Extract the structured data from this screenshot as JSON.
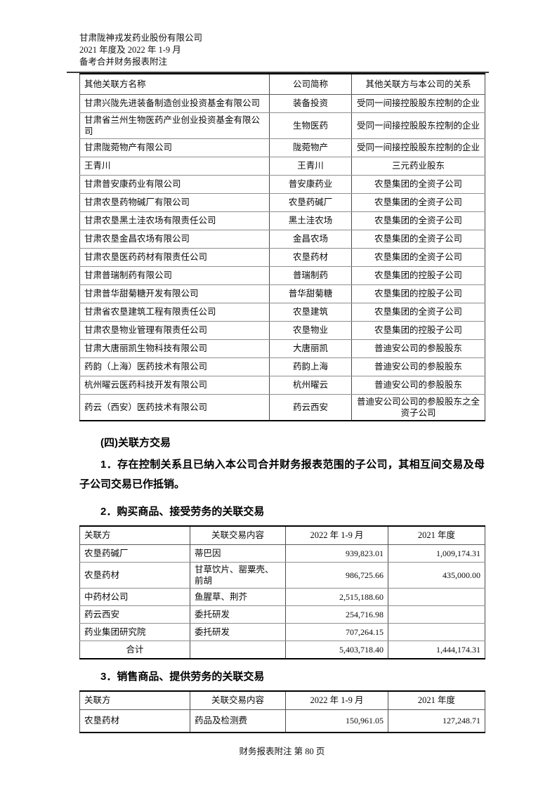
{
  "page": {
    "header_lines": [
      "甘肃陇神戎发药业股份有限公司",
      "2021 年度及 2022 年 1-9 月",
      "备考合并财务报表附注"
    ],
    "footer": "财务报表附注 第 80 页"
  },
  "colors": {
    "text": "#000000",
    "table_border": "#000000"
  },
  "related_parties_table": {
    "headers": [
      "其他关联方名称",
      "公司简称",
      "其他关联方与本公司的关系"
    ],
    "rows": [
      [
        "甘肃兴陇先进装备制造创业投资基金有限公司",
        "装备投资",
        "受同一间接控股股东控制的企业"
      ],
      [
        "甘肃省兰州生物医药产业创业投资基金有限公司",
        "生物医药",
        "受同一间接控股股东控制的企业"
      ],
      [
        "甘肃陇菀物产有限公司",
        "陇菀物产",
        "受同一间接控股股东控制的企业"
      ],
      [
        "王青川",
        "王青川",
        "三元药业股东"
      ],
      [
        "甘肃普安康药业有限公司",
        "普安康药业",
        "农垦集团的全资子公司"
      ],
      [
        "甘肃农垦药物碱厂有限公司",
        "农垦药碱厂",
        "农垦集团的全资子公司"
      ],
      [
        "甘肃农垦黑土洼农场有限责任公司",
        "黑土洼农场",
        "农垦集团的全资子公司"
      ],
      [
        "甘肃农垦金昌农场有限公司",
        "金昌农场",
        "农垦集团的全资子公司"
      ],
      [
        "甘肃农垦医药药材有限责任公司",
        "农垦药材",
        "农垦集团的全资子公司"
      ],
      [
        "甘肃普瑞制药有限公司",
        "普瑞制药",
        "农垦集团的控股子公司"
      ],
      [
        "甘肃普华甜菊糖开发有限公司",
        "普华甜菊糖",
        "农垦集团的控股子公司"
      ],
      [
        "甘肃省农垦建筑工程有限责任公司",
        "农垦建筑",
        "农垦集团的全资子公司"
      ],
      [
        "甘肃农垦物业管理有限责任公司",
        "农垦物业",
        "农垦集团的控股子公司"
      ],
      [
        "甘肃大唐丽凯生物科技有限公司",
        "大唐丽凯",
        "普迪安公司的参股股东"
      ],
      [
        "药韵（上海）医药技术有限公司",
        "药韵上海",
        "普迪安公司的参股股东"
      ],
      [
        "杭州曜云医药科技开发有限公司",
        "杭州曜云",
        "普迪安公司的参股股东"
      ],
      [
        "药云（西安）医药技术有限公司",
        "药云西安",
        "普迪安公司公司的参股股东之全资子公司"
      ]
    ]
  },
  "section": {
    "heading": "(四)关联方交易",
    "para1": "1．存在控制关系且已纳入本公司合并财务报表范围的子公司，其相互间交易及母子公司交易已作抵销。",
    "purchase_heading": "2．购买商品、接受劳务的关联交易",
    "sales_heading": "3．销售商品、提供劳务的关联交易"
  },
  "purchase_table": {
    "headers": [
      "关联方",
      "关联交易内容",
      "2022 年 1-9 月",
      "2021 年度"
    ],
    "rows": [
      [
        "农垦药碱厂",
        "蒂巴因",
        "939,823.01",
        "1,009,174.31"
      ],
      [
        "农垦药材",
        "甘草饮片、罂粟壳、前胡",
        "986,725.66",
        "435,000.00"
      ],
      [
        "中药材公司",
        "鱼腥草、荆芥",
        "2,515,188.60",
        ""
      ],
      [
        "药云西安",
        "委托研发",
        "254,716.98",
        ""
      ],
      [
        "药业集团研究院",
        "委托研发",
        "707,264.15",
        ""
      ]
    ],
    "total_row": [
      "合计",
      "",
      "5,403,718.40",
      "1,444,174.31"
    ]
  },
  "sales_table": {
    "headers": [
      "关联方",
      "关联交易内容",
      "2022 年 1-9 月",
      "2021 年度"
    ],
    "rows": [
      [
        "农垦药材",
        "药品及检测费",
        "150,961.05",
        "127,248.71"
      ]
    ]
  }
}
